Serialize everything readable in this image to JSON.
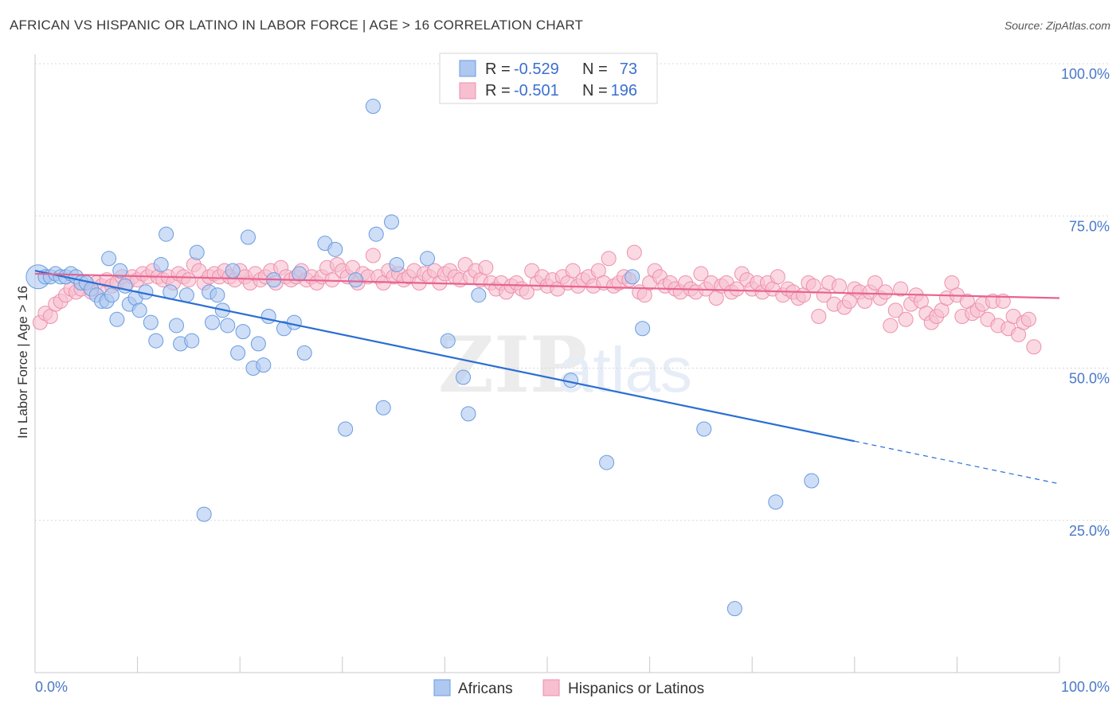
{
  "header": {
    "title": "AFRICAN VS HISPANIC OR LATINO IN LABOR FORCE | AGE > 16 CORRELATION CHART",
    "source": "Source: ZipAtlas.com"
  },
  "legend": {
    "r_label": "R =",
    "n_label": "N =",
    "rows": [
      {
        "r": "-0.529",
        "n": "73"
      },
      {
        "r": "-0.501",
        "n": "196"
      }
    ]
  },
  "watermark": {
    "zip": "ZIP",
    "atlas": "atlas"
  },
  "chart_data": {
    "type": "scatter",
    "title": "AFRICAN VS HISPANIC OR LATINO IN LABOR FORCE | AGE > 16 CORRELATION CHART",
    "xlabel": "",
    "ylabel": "In Labor Force | Age > 16",
    "xlim": [
      0,
      100
    ],
    "ylim": [
      0,
      100
    ],
    "x_tick_labels": [
      "0.0%",
      "100.0%"
    ],
    "y_tick_labels": [
      "25.0%",
      "50.0%",
      "75.0%",
      "100.0%"
    ],
    "y_ticks": [
      25,
      50,
      75,
      100
    ],
    "grid": true,
    "legend_position": "top-center",
    "colors": {
      "africans_fill": "#aec8f0",
      "africans_stroke": "#6a9be0",
      "africans_line": "#2a6ed4",
      "hispanics_fill": "#f7bfd0",
      "hispanics_stroke": "#ee8fab",
      "hispanics_line": "#e8638f",
      "axis_label": "#4a78c8",
      "grid": "#d8d8d8"
    },
    "series": [
      {
        "name": "Africans",
        "r": -0.529,
        "n": 73,
        "trend": {
          "x": [
            0,
            80
          ],
          "y": [
            66,
            38
          ],
          "dashed_to": [
            100,
            31
          ]
        },
        "points": [
          [
            0.3,
            65
          ],
          [
            1,
            65
          ],
          [
            1.5,
            65
          ],
          [
            2,
            65.5
          ],
          [
            2.5,
            65
          ],
          [
            3,
            65
          ],
          [
            3.5,
            65.5
          ],
          [
            4,
            65
          ],
          [
            4.5,
            64
          ],
          [
            5,
            64
          ],
          [
            5.5,
            63
          ],
          [
            6,
            62
          ],
          [
            6.5,
            61
          ],
          [
            7,
            61
          ],
          [
            7.2,
            68
          ],
          [
            7.5,
            62
          ],
          [
            8,
            58
          ],
          [
            8.3,
            66
          ],
          [
            8.8,
            63.5
          ],
          [
            9.2,
            60.5
          ],
          [
            9.8,
            61.5
          ],
          [
            10.2,
            59.5
          ],
          [
            10.8,
            62.5
          ],
          [
            11.3,
            57.5
          ],
          [
            11.8,
            54.5
          ],
          [
            12.3,
            67
          ],
          [
            12.8,
            72
          ],
          [
            13.2,
            62.5
          ],
          [
            13.8,
            57
          ],
          [
            14.2,
            54
          ],
          [
            14.8,
            62
          ],
          [
            15.3,
            54.5
          ],
          [
            15.8,
            69
          ],
          [
            16.5,
            26
          ],
          [
            17,
            62.5
          ],
          [
            17.3,
            57.5
          ],
          [
            17.8,
            62
          ],
          [
            18.3,
            59.5
          ],
          [
            18.8,
            57
          ],
          [
            19.3,
            66
          ],
          [
            19.8,
            52.5
          ],
          [
            20.3,
            56
          ],
          [
            20.8,
            71.5
          ],
          [
            21.3,
            50
          ],
          [
            21.8,
            54
          ],
          [
            22.3,
            50.5
          ],
          [
            22.8,
            58.5
          ],
          [
            23.3,
            64.5
          ],
          [
            24.3,
            56.5
          ],
          [
            25.3,
            57.5
          ],
          [
            25.8,
            65.5
          ],
          [
            26.3,
            52.5
          ],
          [
            28.3,
            70.5
          ],
          [
            29.3,
            69.5
          ],
          [
            30.3,
            40
          ],
          [
            31.3,
            64.5
          ],
          [
            33.0,
            93
          ],
          [
            33.3,
            72
          ],
          [
            34.0,
            43.5
          ],
          [
            34.8,
            74
          ],
          [
            35.3,
            67
          ],
          [
            38.3,
            68
          ],
          [
            40.3,
            54.5
          ],
          [
            41.8,
            48.5
          ],
          [
            42.3,
            42.5
          ],
          [
            43.3,
            62
          ],
          [
            52.3,
            48
          ],
          [
            55.8,
            34.5
          ],
          [
            58.3,
            65
          ],
          [
            59.3,
            56.5
          ],
          [
            65.3,
            40
          ],
          [
            68.3,
            10.5
          ],
          [
            72.3,
            28
          ],
          [
            75.8,
            31.5
          ]
        ]
      },
      {
        "name": "Hispanics or Latinos",
        "r": -0.501,
        "n": 196,
        "trend": {
          "x": [
            0,
            100
          ],
          "y": [
            65.5,
            61.5
          ]
        },
        "points": [
          [
            0.5,
            57.5
          ],
          [
            1,
            59
          ],
          [
            1.5,
            58.5
          ],
          [
            2,
            60.5
          ],
          [
            2.5,
            61
          ],
          [
            3,
            62
          ],
          [
            3.5,
            63
          ],
          [
            4,
            62.5
          ],
          [
            4.5,
            63
          ],
          [
            5,
            64
          ],
          [
            5.5,
            62.5
          ],
          [
            6,
            64
          ],
          [
            6.5,
            63.5
          ],
          [
            7,
            64.5
          ],
          [
            7.5,
            63.5
          ],
          [
            8,
            64
          ],
          [
            8.5,
            65
          ],
          [
            9,
            64
          ],
          [
            9.5,
            65
          ],
          [
            10,
            64.5
          ],
          [
            10.5,
            65.5
          ],
          [
            11,
            65
          ],
          [
            11.5,
            66
          ],
          [
            12,
            65
          ],
          [
            12.5,
            64.5
          ],
          [
            13,
            65
          ],
          [
            13.5,
            64
          ],
          [
            14,
            65.5
          ],
          [
            14.5,
            65
          ],
          [
            15,
            64.5
          ],
          [
            15.5,
            67
          ],
          [
            16,
            66
          ],
          [
            16.5,
            64
          ],
          [
            17,
            65
          ],
          [
            17.5,
            65.5
          ],
          [
            18,
            65
          ],
          [
            18.5,
            66
          ],
          [
            19,
            65
          ],
          [
            19.5,
            64.5
          ],
          [
            20,
            66
          ],
          [
            20.5,
            65
          ],
          [
            21,
            64
          ],
          [
            21.5,
            65.5
          ],
          [
            22,
            64.5
          ],
          [
            22.5,
            65
          ],
          [
            23,
            66
          ],
          [
            23.5,
            64
          ],
          [
            24,
            66.5
          ],
          [
            24.5,
            65
          ],
          [
            25,
            64.5
          ],
          [
            25.5,
            65
          ],
          [
            26,
            66
          ],
          [
            26.5,
            64.5
          ],
          [
            27,
            65
          ],
          [
            27.5,
            64
          ],
          [
            28,
            65
          ],
          [
            28.5,
            66.5
          ],
          [
            29,
            64.5
          ],
          [
            29.5,
            67
          ],
          [
            30,
            66
          ],
          [
            30.5,
            65
          ],
          [
            31,
            66.5
          ],
          [
            31.5,
            64
          ],
          [
            32,
            65.5
          ],
          [
            32.5,
            65
          ],
          [
            33,
            68.5
          ],
          [
            33.5,
            65
          ],
          [
            34,
            64
          ],
          [
            34.5,
            66
          ],
          [
            35,
            65
          ],
          [
            35.5,
            65.5
          ],
          [
            36,
            64.5
          ],
          [
            36.5,
            65
          ],
          [
            37,
            66
          ],
          [
            37.5,
            64
          ],
          [
            38,
            65.5
          ],
          [
            38.5,
            65
          ],
          [
            39,
            66
          ],
          [
            39.5,
            64
          ],
          [
            40,
            65.5
          ],
          [
            40.5,
            66
          ],
          [
            41,
            65
          ],
          [
            41.5,
            64.5
          ],
          [
            42,
            67
          ],
          [
            42.5,
            65
          ],
          [
            43,
            66
          ],
          [
            43.5,
            64.5
          ],
          [
            44,
            66.5
          ],
          [
            44.5,
            64
          ],
          [
            45,
            63
          ],
          [
            45.5,
            64
          ],
          [
            46,
            62.5
          ],
          [
            46.5,
            63.5
          ],
          [
            47,
            64
          ],
          [
            47.5,
            63
          ],
          [
            48,
            62.5
          ],
          [
            48.5,
            66
          ],
          [
            49,
            64
          ],
          [
            49.5,
            65
          ],
          [
            50,
            63.5
          ],
          [
            50.5,
            64.5
          ],
          [
            51,
            63
          ],
          [
            51.5,
            65
          ],
          [
            52,
            64
          ],
          [
            52.5,
            66
          ],
          [
            53,
            63.5
          ],
          [
            53.5,
            64.5
          ],
          [
            54,
            65
          ],
          [
            54.5,
            63.5
          ],
          [
            55,
            66
          ],
          [
            55.5,
            64
          ],
          [
            56,
            68
          ],
          [
            56.5,
            63.5
          ],
          [
            57,
            64
          ],
          [
            57.5,
            65
          ],
          [
            58,
            64.5
          ],
          [
            58.5,
            69
          ],
          [
            59,
            62.5
          ],
          [
            59.5,
            62
          ],
          [
            60,
            64
          ],
          [
            60.5,
            66
          ],
          [
            61,
            65
          ],
          [
            61.5,
            63.5
          ],
          [
            62,
            64
          ],
          [
            62.5,
            63
          ],
          [
            63,
            62.5
          ],
          [
            63.5,
            64
          ],
          [
            64,
            63
          ],
          [
            64.5,
            62.5
          ],
          [
            65,
            65.5
          ],
          [
            65.5,
            63
          ],
          [
            66,
            64
          ],
          [
            66.5,
            61.5
          ],
          [
            67,
            63.5
          ],
          [
            67.5,
            64
          ],
          [
            68,
            62.5
          ],
          [
            68.5,
            63
          ],
          [
            69,
            65.5
          ],
          [
            69.5,
            64.5
          ],
          [
            70,
            63
          ],
          [
            70.5,
            64
          ],
          [
            71,
            62.5
          ],
          [
            71.5,
            64
          ],
          [
            72,
            63
          ],
          [
            72.5,
            65
          ],
          [
            73,
            62
          ],
          [
            73.5,
            63
          ],
          [
            74,
            62.5
          ],
          [
            74.5,
            61.5
          ],
          [
            75,
            62
          ],
          [
            75.5,
            64
          ],
          [
            76,
            63.5
          ],
          [
            76.5,
            58.5
          ],
          [
            77,
            62
          ],
          [
            77.5,
            64
          ],
          [
            78,
            60.5
          ],
          [
            78.5,
            63.5
          ],
          [
            79,
            60
          ],
          [
            79.5,
            61
          ],
          [
            80,
            63
          ],
          [
            80.5,
            62.5
          ],
          [
            81,
            61
          ],
          [
            81.5,
            62.5
          ],
          [
            82,
            64
          ],
          [
            82.5,
            61.5
          ],
          [
            83,
            62.5
          ],
          [
            83.5,
            57
          ],
          [
            84,
            59.5
          ],
          [
            84.5,
            63
          ],
          [
            85,
            58
          ],
          [
            85.5,
            60.5
          ],
          [
            86,
            62
          ],
          [
            86.5,
            61
          ],
          [
            87,
            59
          ],
          [
            87.5,
            57.5
          ],
          [
            88,
            58.5
          ],
          [
            88.5,
            59.5
          ],
          [
            89,
            61.5
          ],
          [
            89.5,
            64
          ],
          [
            90,
            62
          ],
          [
            90.5,
            58.5
          ],
          [
            91,
            61
          ],
          [
            91.5,
            59
          ],
          [
            92,
            59.5
          ],
          [
            92.5,
            60.5
          ],
          [
            93,
            58
          ],
          [
            93.5,
            61
          ],
          [
            94,
            57
          ],
          [
            94.5,
            61
          ],
          [
            95,
            56.5
          ],
          [
            95.5,
            58.5
          ],
          [
            96,
            55.5
          ],
          [
            96.5,
            57.5
          ],
          [
            97,
            58
          ],
          [
            97.5,
            53.5
          ]
        ]
      }
    ]
  },
  "bottom_legend": {
    "items": [
      "Africans",
      "Hispanics or Latinos"
    ]
  }
}
